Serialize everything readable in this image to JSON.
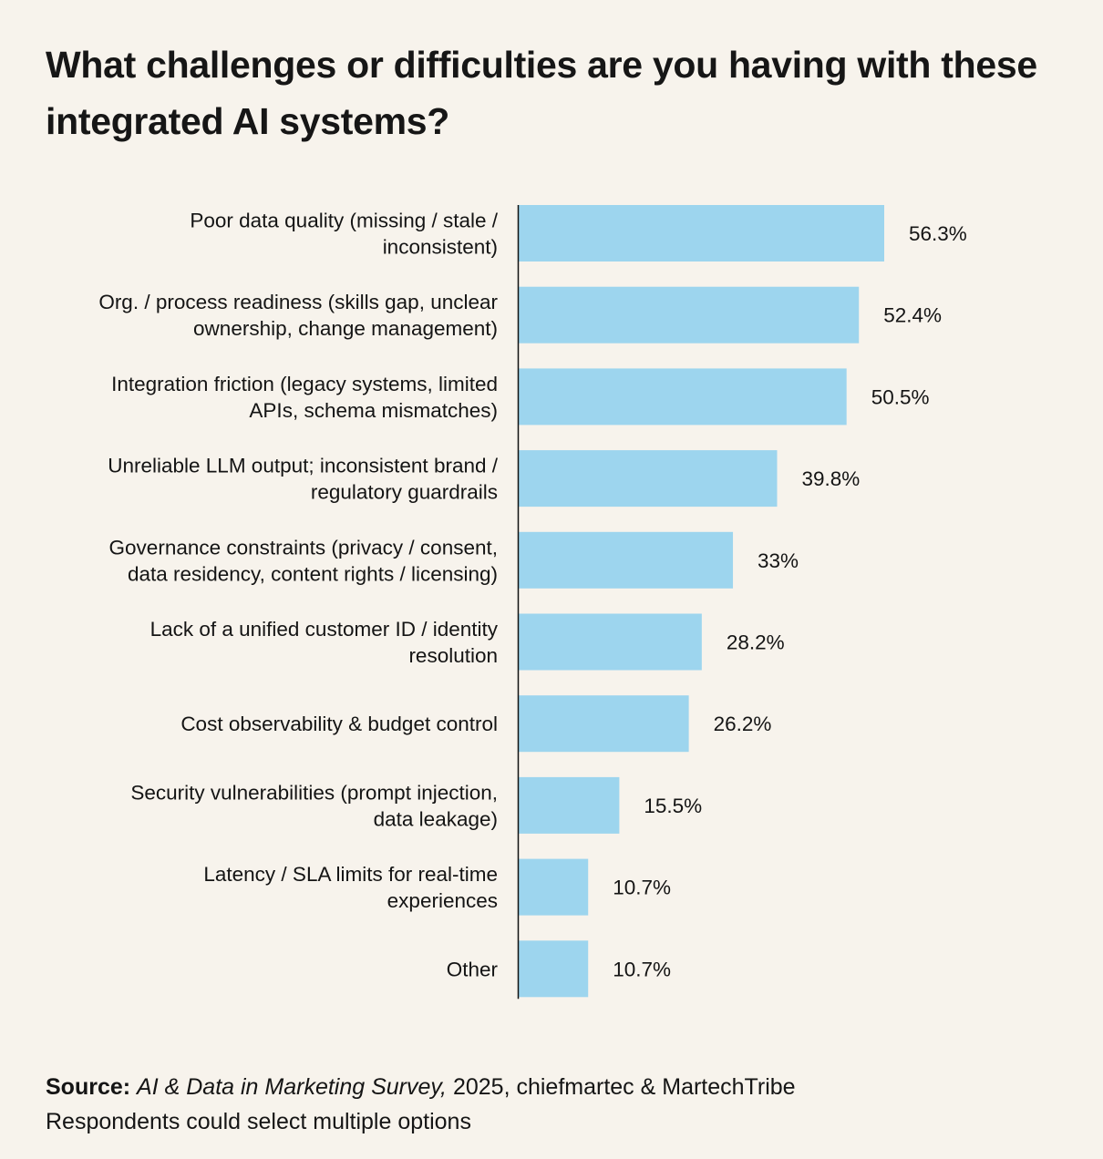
{
  "title": "What challenges or difficulties are you having with these integrated AI systems?",
  "chart_data": {
    "type": "bar",
    "orientation": "horizontal",
    "title": "What challenges or difficulties are you having with these integrated AI systems?",
    "xlabel": "",
    "ylabel": "",
    "xlim": [
      0,
      60
    ],
    "grid": false,
    "unit": "%",
    "bar_color": "#9dd5ee",
    "axis_color": "#111111",
    "categories": [
      [
        "Poor data quality (missing / stale /",
        "inconsistent)"
      ],
      [
        "Org. / process readiness (skills gap, unclear",
        "ownership, change management)"
      ],
      [
        "Integration friction (legacy systems, limited",
        "APIs, schema mismatches)"
      ],
      [
        "Unreliable LLM output; inconsistent brand /",
        "regulatory guardrails"
      ],
      [
        "Governance constraints (privacy / consent,",
        "data residency, content rights / licensing)"
      ],
      [
        "Lack of a unified customer ID / identity",
        "resolution"
      ],
      [
        "Cost observability & budget control"
      ],
      [
        "Security vulnerabilities (prompt injection,",
        "data leakage)"
      ],
      [
        "Latency / SLA limits for real-time",
        "experiences"
      ],
      [
        "Other"
      ]
    ],
    "values": [
      56.3,
      52.4,
      50.5,
      39.8,
      33,
      28.2,
      26.2,
      15.5,
      10.7,
      10.7
    ],
    "value_labels": [
      "56.3%",
      "52.4%",
      "50.5%",
      "39.8%",
      "33%",
      "28.2%",
      "26.2%",
      "15.5%",
      "10.7%",
      "10.7%"
    ]
  },
  "footer": {
    "source_label": "Source:",
    "source_title": "AI & Data in Marketing Survey,",
    "source_rest": " 2025, chiefmartec & MartechTribe",
    "note": "Respondents could select multiple options"
  },
  "colors": {
    "background": "#f7f3ec",
    "bar": "#9dd5ee",
    "text": "#141414"
  }
}
